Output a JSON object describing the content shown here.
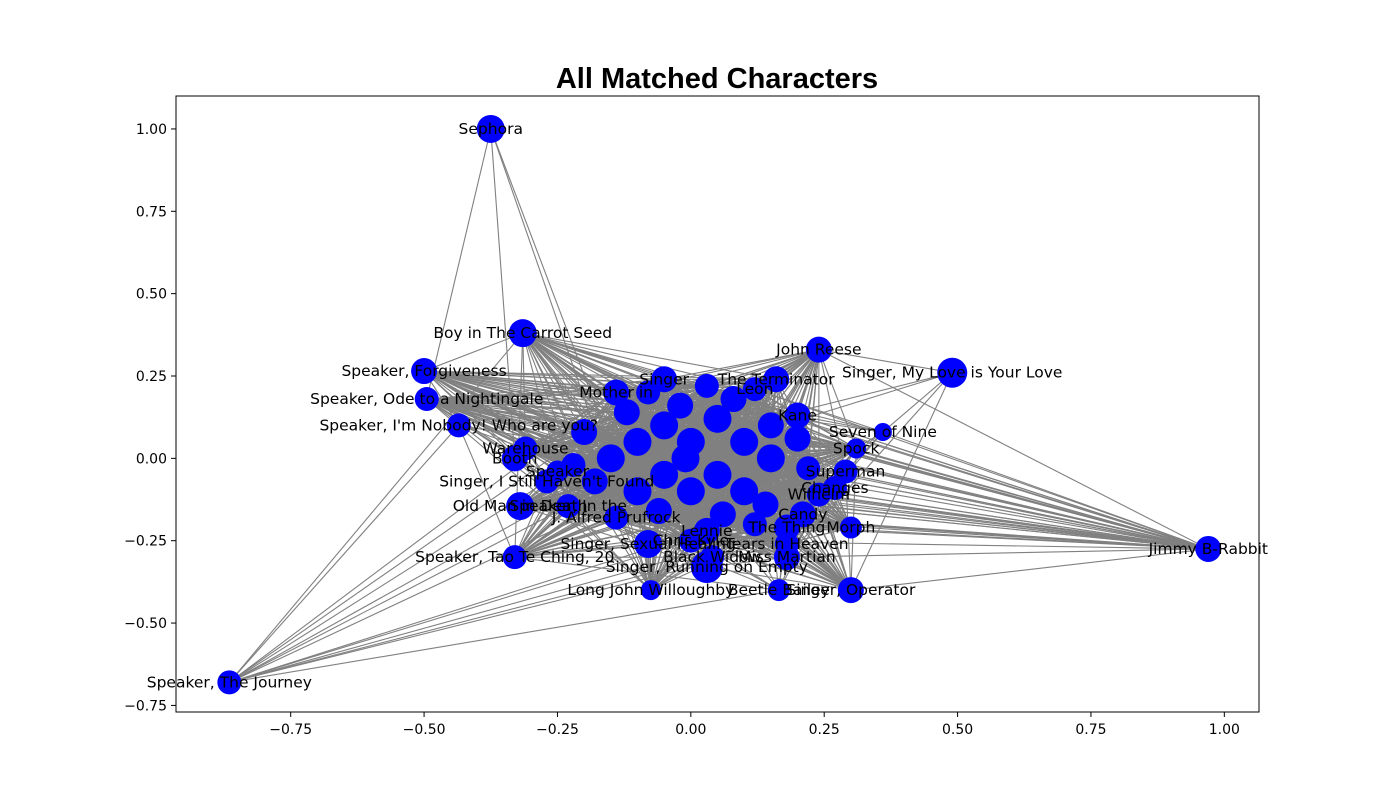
{
  "chart_data": {
    "type": "network",
    "title": "All Matched Characters",
    "xlabel": "",
    "ylabel": "",
    "xlim": [
      -0.965,
      1.065
    ],
    "ylim": [
      -0.77,
      1.1
    ],
    "x_ticks": [
      -0.75,
      -0.5,
      -0.25,
      0.0,
      0.25,
      0.5,
      0.75,
      1.0
    ],
    "x_tick_labels": [
      "−0.75",
      "−0.50",
      "−0.25",
      "0.00",
      "0.25",
      "0.50",
      "0.75",
      "1.00"
    ],
    "y_ticks": [
      1.0,
      0.75,
      0.5,
      0.25,
      0.0,
      -0.25,
      -0.5,
      -0.75
    ],
    "y_tick_labels": [
      "1.00",
      "0.75",
      "0.50",
      "0.25",
      "0.00",
      "−0.25",
      "−0.50",
      "−0.75"
    ],
    "grid": false,
    "node_color": "#0000ff",
    "edge_color": "#808080",
    "nodes": [
      {
        "label": "Sephora",
        "x": -0.375,
        "y": 1.0,
        "size": 14
      },
      {
        "label": "Boy in The Carrot Seed",
        "x": -0.315,
        "y": 0.38,
        "size": 14
      },
      {
        "label": "John Reese",
        "x": 0.24,
        "y": 0.33,
        "size": 13
      },
      {
        "label": "Singer, My Love is Your Love",
        "x": 0.49,
        "y": 0.26,
        "size": 15
      },
      {
        "label": "Speaker, Forgiveness",
        "x": -0.5,
        "y": 0.265,
        "size": 13
      },
      {
        "label": "Speaker, Ode to a Nightingale",
        "x": -0.495,
        "y": 0.18,
        "size": 12
      },
      {
        "label": "Speaker, I'm Nobody! Who are you?",
        "x": -0.435,
        "y": 0.1,
        "size": 12
      },
      {
        "label": "Mother in",
        "x": -0.14,
        "y": 0.2,
        "size": 13
      },
      {
        "label": "Singer",
        "x": -0.05,
        "y": 0.24,
        "size": 13
      },
      {
        "label": "The Terminator",
        "x": 0.16,
        "y": 0.24,
        "size": 13
      },
      {
        "label": "Leon",
        "x": 0.12,
        "y": 0.21,
        "size": 12
      },
      {
        "label": "Kane",
        "x": 0.2,
        "y": 0.13,
        "size": 13
      },
      {
        "label": "Seven of Nine",
        "x": 0.36,
        "y": 0.08,
        "size": 9
      },
      {
        "label": "Spock",
        "x": 0.31,
        "y": 0.03,
        "size": 10
      },
      {
        "label": "Warehouse",
        "x": -0.31,
        "y": 0.03,
        "size": 12
      },
      {
        "label": "Booth",
        "x": -0.33,
        "y": 0.0,
        "size": 13
      },
      {
        "label": "Singer, I Still Haven't Found",
        "x": -0.27,
        "y": -0.07,
        "size": 12
      },
      {
        "label": "Speaker",
        "x": -0.25,
        "y": -0.04,
        "size": 11
      },
      {
        "label": "Superman",
        "x": 0.29,
        "y": -0.04,
        "size": 12
      },
      {
        "label": "Changes",
        "x": 0.27,
        "y": -0.09,
        "size": 12
      },
      {
        "label": "Wilhelm",
        "x": 0.24,
        "y": -0.11,
        "size": 12
      },
      {
        "label": "Candy",
        "x": 0.21,
        "y": -0.17,
        "size": 13
      },
      {
        "label": "Old Man in Death",
        "x": -0.32,
        "y": -0.145,
        "size": 14
      },
      {
        "label": "Speaker, In the",
        "x": -0.23,
        "y": -0.145,
        "size": 12
      },
      {
        "label": "J. Alfred Prufrock",
        "x": -0.14,
        "y": -0.18,
        "size": 12
      },
      {
        "label": "The Thing",
        "x": 0.18,
        "y": -0.21,
        "size": 13
      },
      {
        "label": "Morph",
        "x": 0.3,
        "y": -0.21,
        "size": 11
      },
      {
        "label": "Lennie",
        "x": 0.03,
        "y": -0.22,
        "size": 13
      },
      {
        "label": "Tears in Heaven",
        "x": 0.18,
        "y": -0.26,
        "size": 12
      },
      {
        "label": "Chris Kyle",
        "x": 0.0,
        "y": -0.25,
        "size": 12
      },
      {
        "label": "Singer, Sexual Healing",
        "x": -0.08,
        "y": -0.26,
        "size": 14
      },
      {
        "label": "Black Widow",
        "x": 0.04,
        "y": -0.3,
        "size": 12
      },
      {
        "label": "Miss Martian",
        "x": 0.18,
        "y": -0.3,
        "size": 13
      },
      {
        "label": "Singer, Running on Empty",
        "x": 0.03,
        "y": -0.33,
        "size": 16
      },
      {
        "label": "Speaker, Tao Te Ching, 20",
        "x": -0.33,
        "y": -0.3,
        "size": 12
      },
      {
        "label": "Long John Willoughby",
        "x": -0.075,
        "y": -0.4,
        "size": 10
      },
      {
        "label": "Beetle Bailey",
        "x": 0.165,
        "y": -0.4,
        "size": 11
      },
      {
        "label": "Singer, Operator",
        "x": 0.3,
        "y": -0.4,
        "size": 13
      },
      {
        "label": "Jimmy B-Rabbit",
        "x": 0.97,
        "y": -0.275,
        "size": 13
      },
      {
        "label": "Speaker, The Journey",
        "x": -0.865,
        "y": -0.68,
        "size": 12
      },
      {
        "label": "",
        "x": -0.05,
        "y": 0.1,
        "size": 14
      },
      {
        "label": "",
        "x": 0.0,
        "y": 0.05,
        "size": 14
      },
      {
        "label": "",
        "x": 0.05,
        "y": 0.12,
        "size": 14
      },
      {
        "label": "",
        "x": -0.1,
        "y": 0.05,
        "size": 14
      },
      {
        "label": "",
        "x": 0.1,
        "y": 0.05,
        "size": 14
      },
      {
        "label": "",
        "x": -0.15,
        "y": 0.0,
        "size": 14
      },
      {
        "label": "",
        "x": 0.15,
        "y": 0.0,
        "size": 14
      },
      {
        "label": "",
        "x": -0.05,
        "y": -0.05,
        "size": 14
      },
      {
        "label": "",
        "x": 0.05,
        "y": -0.05,
        "size": 14
      },
      {
        "label": "",
        "x": 0.0,
        "y": -0.1,
        "size": 14
      },
      {
        "label": "",
        "x": -0.1,
        "y": -0.1,
        "size": 14
      },
      {
        "label": "",
        "x": 0.1,
        "y": -0.1,
        "size": 14
      },
      {
        "label": "",
        "x": -0.2,
        "y": 0.08,
        "size": 13
      },
      {
        "label": "",
        "x": 0.2,
        "y": 0.06,
        "size": 13
      },
      {
        "label": "",
        "x": -0.18,
        "y": -0.07,
        "size": 13
      },
      {
        "label": "",
        "x": 0.14,
        "y": -0.14,
        "size": 13
      },
      {
        "label": "",
        "x": -0.06,
        "y": -0.16,
        "size": 13
      },
      {
        "label": "",
        "x": 0.06,
        "y": -0.17,
        "size": 13
      },
      {
        "label": "",
        "x": -0.02,
        "y": 0.16,
        "size": 13
      },
      {
        "label": "",
        "x": 0.08,
        "y": 0.18,
        "size": 13
      },
      {
        "label": "",
        "x": -0.12,
        "y": 0.14,
        "size": 13
      },
      {
        "label": "",
        "x": 0.15,
        "y": 0.1,
        "size": 13
      },
      {
        "label": "",
        "x": -0.22,
        "y": -0.02,
        "size": 12
      },
      {
        "label": "",
        "x": 0.22,
        "y": -0.03,
        "size": 12
      },
      {
        "label": "",
        "x": -0.01,
        "y": 0.0,
        "size": 14
      },
      {
        "label": "",
        "x": 0.03,
        "y": 0.22,
        "size": 12
      },
      {
        "label": "",
        "x": -0.08,
        "y": 0.2,
        "size": 12
      },
      {
        "label": "",
        "x": 0.12,
        "y": -0.2,
        "size": 12
      }
    ]
  }
}
